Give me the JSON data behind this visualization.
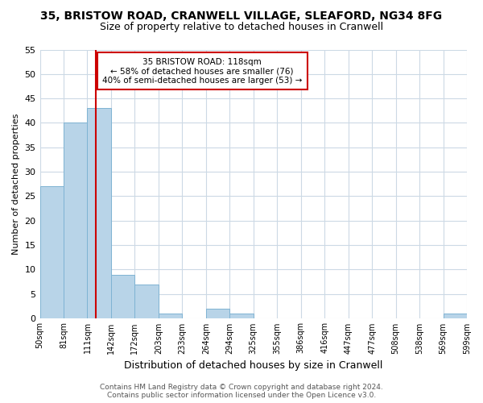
{
  "title": "35, BRISTOW ROAD, CRANWELL VILLAGE, SLEAFORD, NG34 8FG",
  "subtitle": "Size of property relative to detached houses in Cranwell",
  "xlabel": "Distribution of detached houses by size in Cranwell",
  "ylabel": "Number of detached properties",
  "bar_values": [
    27,
    40,
    43,
    9,
    7,
    1,
    0,
    2,
    1,
    0,
    0,
    0,
    0,
    0,
    0,
    0,
    0,
    1
  ],
  "bin_labels": [
    "50sqm",
    "81sqm",
    "111sqm",
    "142sqm",
    "172sqm",
    "203sqm",
    "233sqm",
    "264sqm",
    "294sqm",
    "325sqm",
    "355sqm",
    "386sqm",
    "416sqm",
    "447sqm",
    "477sqm",
    "508sqm",
    "538sqm",
    "569sqm",
    "599sqm"
  ],
  "bar_color": "#b8d4e8",
  "bar_edge_color": "#7fb3d3",
  "vline_color": "#cc0000",
  "vline_pos": 2.37,
  "annotation_title": "35 BRISTOW ROAD: 118sqm",
  "annotation_line1": "← 58% of detached houses are smaller (76)",
  "annotation_line2": "40% of semi-detached houses are larger (53) →",
  "annotation_box_color": "#ffffff",
  "annotation_box_edge": "#cc0000",
  "ylim": [
    0,
    55
  ],
  "yticks": [
    0,
    5,
    10,
    15,
    20,
    25,
    30,
    35,
    40,
    45,
    50,
    55
  ],
  "footer1": "Contains HM Land Registry data © Crown copyright and database right 2024.",
  "footer2": "Contains public sector information licensed under the Open Licence v3.0.",
  "background_color": "#ffffff",
  "grid_color": "#ccd9e5"
}
